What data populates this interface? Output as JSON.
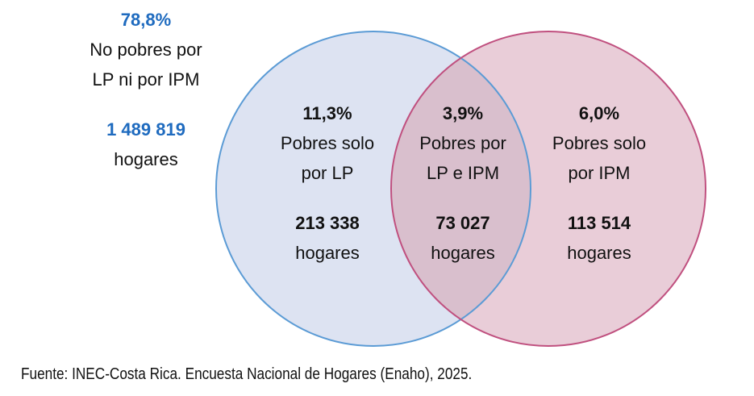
{
  "outside": {
    "percent": "78,8%",
    "label_line1": "No pobres por",
    "label_line2": "LP ni por IPM",
    "households_count": "1 489 819",
    "households_label": "hogares"
  },
  "regions": {
    "only_lp": {
      "percent": "11,3%",
      "label_line1": "Pobres solo",
      "label_line2": "por LP",
      "households_count": "213 338",
      "households_label": "hogares"
    },
    "both": {
      "percent": "3,9%",
      "label_line1": "Pobres por",
      "label_line2": "LP e IPM",
      "households_count": "73 027",
      "households_label": "hogares"
    },
    "only_ipm": {
      "percent": "6,0%",
      "label_line1": "Pobres solo",
      "label_line2": "por IPM",
      "households_count": "113 514",
      "households_label": "hogares"
    }
  },
  "colors": {
    "lp_stroke": "#5b9bd5",
    "lp_fill": "#dde3f2",
    "ipm_stroke": "#c0507f",
    "ipm_fill": "#e9cdd8",
    "overlap_fill": "#d9bfcd",
    "accent_text": "#1f6bbf"
  },
  "source": "Fuente: INEC-Costa Rica. Encuesta Nacional de Hogares (Enaho), 2025."
}
